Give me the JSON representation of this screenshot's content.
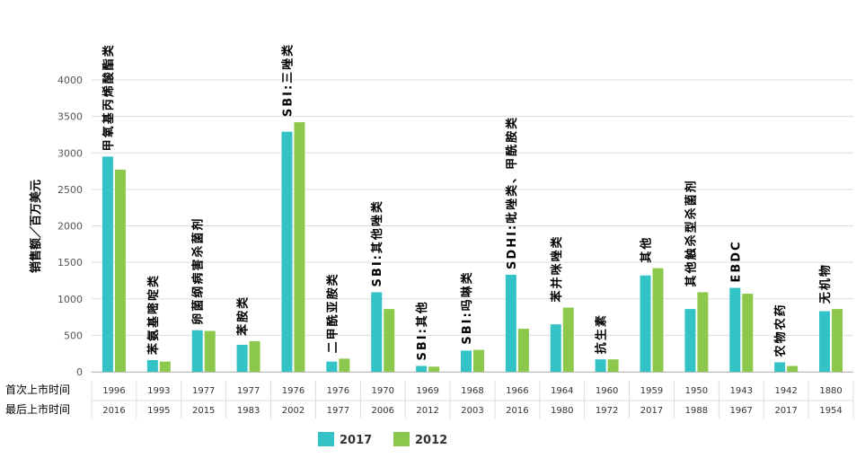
{
  "chart_data": {
    "type": "bar",
    "ylabel": "销售额／百万美元",
    "ylim": [
      0,
      4000
    ],
    "yticks": [
      0,
      500,
      1000,
      1500,
      2000,
      2500,
      3000,
      3500,
      4000
    ],
    "grid": true,
    "legend_position": "bottom",
    "categories": [
      "甲氧基丙烯酸酯类",
      "苯氨基嘧啶类",
      "卵菌纲病害杀菌剂",
      "苯胺类",
      "SBI:三唑类",
      "二甲酰亚胺类",
      "SBI:其他唑类",
      "SBI:其他",
      "SBI:吗啉类",
      "SDHI:吡唑类、甲酰胺类",
      "苯并咪唑类",
      "抗生素",
      "其他",
      "其他触杀型杀菌剂",
      "EBDC",
      "农物农药",
      "无机物"
    ],
    "series": [
      {
        "name": "2017",
        "color": "#33c3c7",
        "values": [
          2950,
          160,
          570,
          370,
          3290,
          140,
          1090,
          80,
          290,
          1330,
          650,
          170,
          1320,
          860,
          1150,
          130,
          830
        ]
      },
      {
        "name": "2012",
        "color": "#8cc84b",
        "values": [
          2770,
          140,
          560,
          420,
          3420,
          180,
          860,
          70,
          300,
          590,
          880,
          170,
          1420,
          1090,
          1070,
          80,
          860
        ]
      }
    ],
    "row_labels": {
      "first": "首次上市时间",
      "last": "最后上市时间"
    },
    "first_launch": [
      "1996",
      "1993",
      "1977",
      "1977",
      "1976",
      "1976",
      "1970",
      "1969",
      "1968",
      "1966",
      "1964",
      "1960",
      "1959",
      "1950",
      "1943",
      "1942",
      "1880"
    ],
    "last_launch": [
      "2016",
      "1995",
      "2015",
      "1983",
      "2002",
      "1977",
      "2006",
      "2012",
      "2003",
      "2016",
      "1980",
      "1972",
      "2017",
      "1988",
      "1967",
      "2017",
      "1954"
    ],
    "legend": [
      "2017",
      "2012"
    ],
    "grid_color": "#dddddd"
  }
}
